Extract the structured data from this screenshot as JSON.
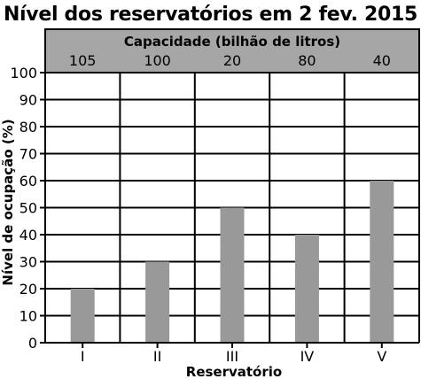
{
  "chart_data": {
    "type": "bar",
    "title": "Nível dos reservatórios em 2 fev. 2015",
    "capacity_header": "Capacidade (bilhão de litros)",
    "capacities": [
      "105",
      "100",
      "20",
      "80",
      "40"
    ],
    "categories": [
      "I",
      "II",
      "III",
      "IV",
      "V"
    ],
    "values": [
      20,
      30,
      50,
      40,
      60
    ],
    "xlabel": "Reservatório",
    "ylabel": "Nível de ocupação (%)",
    "ylim": [
      0,
      100
    ],
    "yticks": [
      "0",
      "10",
      "20",
      "30",
      "40",
      "50",
      "60",
      "70",
      "80",
      "90",
      "100"
    ],
    "grid": true,
    "colors": {
      "bar": "#999999",
      "header_background": "#a6a6a6",
      "grid": "#000000"
    }
  }
}
